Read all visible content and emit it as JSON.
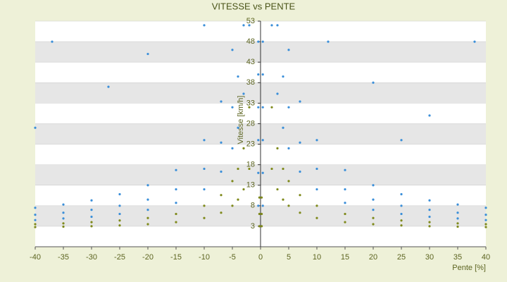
{
  "chart_data": {
    "type": "scatter",
    "title": "VITESSE vs PENTE",
    "x_label": "Pente [%]",
    "y_label": "Vitesse [km/h]",
    "xlim": [
      -40,
      40
    ],
    "xticks": [
      -40,
      -35,
      -30,
      -25,
      -20,
      -15,
      -10,
      -5,
      0,
      5,
      10,
      15,
      20,
      25,
      30,
      35,
      40
    ],
    "ylim": [
      -2,
      53
    ],
    "yticks": [
      3,
      8,
      13,
      18,
      23,
      28,
      33,
      38,
      43,
      48,
      53
    ],
    "grid": true,
    "series": [
      {
        "color": "#3b8fd9",
        "x": [
          2,
          3,
          4,
          5,
          7,
          10,
          15,
          20,
          25,
          30,
          35,
          40,
          -2,
          -3,
          -4,
          -5,
          -7,
          -10,
          -15,
          -20,
          -25,
          -30,
          -35,
          -40,
          3,
          4,
          5,
          7,
          10,
          15,
          20,
          25,
          30,
          35,
          40,
          -3,
          -4,
          -5,
          -7,
          -10,
          -15,
          -20,
          -25,
          -30,
          -35,
          -40,
          5,
          7,
          10,
          15,
          20,
          25,
          30,
          35,
          40,
          -5,
          -7,
          -10,
          -15,
          -20,
          -25,
          -30,
          -35,
          -40,
          0.4,
          0.4,
          0.4,
          0.4,
          0.4,
          0.4,
          -0.4,
          -0.4,
          -0.4,
          -0.4,
          -0.4,
          -0.4,
          -37,
          -10,
          -27,
          -40,
          12,
          25,
          38,
          30,
          -20,
          20
        ],
        "y": [
          52,
          35.3,
          27,
          22,
          16.3,
          12,
          8.7,
          7,
          6,
          5.3,
          4.9,
          4.5,
          52,
          35.3,
          27,
          22,
          16.3,
          12,
          8.7,
          7,
          6,
          5.3,
          4.9,
          4.5,
          52,
          39.5,
          32,
          23.4,
          17,
          12,
          9.5,
          8,
          7,
          6.3,
          5.8,
          52,
          39.5,
          32,
          23.4,
          17,
          12,
          9.5,
          8,
          7,
          6.3,
          5.8,
          46,
          33.4,
          24,
          16.7,
          13,
          10.8,
          9.3,
          8.3,
          7.5,
          46,
          33.4,
          24,
          16.7,
          13,
          10.8,
          9.3,
          8.3,
          7.5,
          8,
          16,
          24,
          32,
          40,
          48,
          8,
          16,
          24,
          32,
          40,
          48,
          48,
          52,
          37,
          27,
          48,
          24,
          48,
          30,
          45,
          38
        ]
      },
      {
        "color": "#7f8a1c",
        "x": [
          2,
          3,
          4,
          5,
          7,
          10,
          15,
          20,
          25,
          30,
          35,
          40,
          -2,
          -3,
          -4,
          -5,
          -7,
          -10,
          -15,
          -20,
          -25,
          -30,
          -35,
          -40,
          2,
          3,
          4,
          5,
          7,
          10,
          15,
          20,
          25,
          30,
          35,
          40,
          -2,
          -3,
          -4,
          -5,
          -7,
          -10,
          -15,
          -20,
          -25,
          -30,
          -35,
          -40,
          0.2,
          0.2,
          0.2,
          -0.2,
          -0.2,
          -0.2
        ],
        "y": [
          17,
          12,
          9.5,
          8,
          6.3,
          5,
          4,
          3.5,
          3.2,
          3,
          2.9,
          2.8,
          17,
          12,
          9.5,
          8,
          6.3,
          5,
          4,
          3.5,
          3.2,
          3,
          2.9,
          2.8,
          32,
          22,
          17,
          14,
          10.6,
          8,
          6,
          5,
          4.4,
          4,
          3.7,
          3.5,
          32,
          22,
          17,
          14,
          10.6,
          8,
          6,
          5,
          4.4,
          4,
          3.7,
          3.5,
          3,
          6,
          10,
          3,
          6,
          10
        ]
      }
    ]
  }
}
